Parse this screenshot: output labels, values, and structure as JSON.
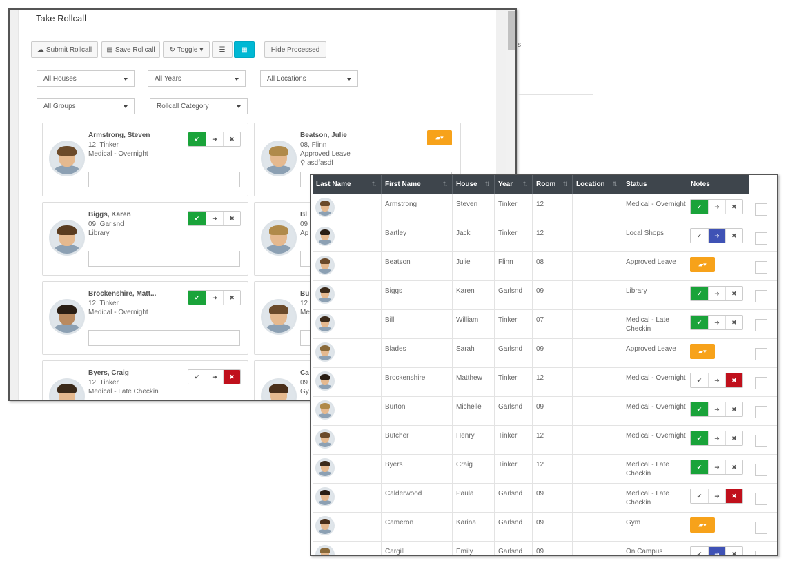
{
  "back": {
    "title": "Take Rollcall",
    "toolbar": {
      "submit": "Submit Rollcall",
      "save": "Save Rollcall",
      "toggle": "Toggle",
      "hide_processed": "Hide Processed"
    },
    "filters": {
      "houses": "All Houses",
      "years": "All Years",
      "locations": "All Locations",
      "groups": "All Groups",
      "category": "Rollcall Category"
    },
    "cards": [
      {
        "name": "Armstrong, Steven",
        "line1": "12, Tinker",
        "line2": "Medical - Overnight"
      },
      {
        "name": "Beatson, Julie",
        "line1": "08, Flinn",
        "line2": "Approved Leave",
        "line3": "asdfasdf"
      },
      {
        "name": "Biggs, Karen",
        "line1": "09, Garlsnd",
        "line2": "Library"
      },
      {
        "name": "Bl",
        "line1": "09",
        "line2": "Ap",
        "line3": ""
      },
      {
        "name": "Brockenshire, Matt...",
        "line1": "12, Tinker",
        "line2": "Medical - Overnight"
      },
      {
        "name": "Bu",
        "line1": "12",
        "line2": "Me"
      },
      {
        "name": "Byers, Craig",
        "line1": "12, Tinker",
        "line2": "Medical - Late Checkin"
      },
      {
        "name": "Ca",
        "line1": "09",
        "line2": "Gy"
      }
    ],
    "bleed_char": "s"
  },
  "table": {
    "headers": [
      "Last Name",
      "First Name",
      "House",
      "Year",
      "Room",
      "Location",
      "Status",
      "Notes"
    ],
    "rows": [
      {
        "last": "Armstrong",
        "first": "Steven",
        "house": "Tinker",
        "year": "12",
        "room": "",
        "location": "",
        "status": "Medical - Overnight",
        "mode": "present"
      },
      {
        "last": "Bartley",
        "first": "Jack",
        "house": "Tinker",
        "year": "12",
        "room": "",
        "location": "",
        "status": "Local Shops",
        "mode": "out"
      },
      {
        "last": "Beatson",
        "first": "Julie",
        "house": "Flinn",
        "year": "08",
        "room": "",
        "location": "",
        "status": "Approved Leave",
        "mode": "leave"
      },
      {
        "last": "Biggs",
        "first": "Karen",
        "house": "Garlsnd",
        "year": "09",
        "room": "",
        "location": "",
        "status": "Library",
        "mode": "present"
      },
      {
        "last": "Bill",
        "first": "William",
        "house": "Tinker",
        "year": "07",
        "room": "",
        "location": "",
        "status": "Medical - Late Checkin",
        "mode": "present"
      },
      {
        "last": "Blades",
        "first": "Sarah",
        "house": "Garlsnd",
        "year": "09",
        "room": "",
        "location": "",
        "status": "Approved Leave",
        "mode": "leave"
      },
      {
        "last": "Brockenshire",
        "first": "Matthew",
        "house": "Tinker",
        "year": "12",
        "room": "",
        "location": "",
        "status": "Medical - Overnight",
        "mode": "absent"
      },
      {
        "last": "Burton",
        "first": "Michelle",
        "house": "Garlsnd",
        "year": "09",
        "room": "",
        "location": "",
        "status": "Medical - Overnight",
        "mode": "present"
      },
      {
        "last": "Butcher",
        "first": "Henry",
        "house": "Tinker",
        "year": "12",
        "room": "",
        "location": "",
        "status": "Medical - Overnight",
        "mode": "present"
      },
      {
        "last": "Byers",
        "first": "Craig",
        "house": "Tinker",
        "year": "12",
        "room": "",
        "location": "",
        "status": "Medical - Late Checkin",
        "mode": "present"
      },
      {
        "last": "Calderwood",
        "first": "Paula",
        "house": "Garlsnd",
        "year": "09",
        "room": "",
        "location": "",
        "status": "Medical - Late Checkin",
        "mode": "absent"
      },
      {
        "last": "Cameron",
        "first": "Karina",
        "house": "Garlsnd",
        "year": "09",
        "room": "",
        "location": "",
        "status": "Gym",
        "mode": "leave"
      },
      {
        "last": "Cargill",
        "first": "Emily",
        "house": "Garlsnd",
        "year": "09",
        "room": "",
        "location": "",
        "status": "On Campus",
        "mode": "out"
      }
    ]
  },
  "colors": {
    "present": "#1aa33a",
    "absent": "#c0101c",
    "out": "#3f52b5",
    "leave": "#f7a21a",
    "header": "#3e454c",
    "toggle_active": "#00b8d4"
  }
}
